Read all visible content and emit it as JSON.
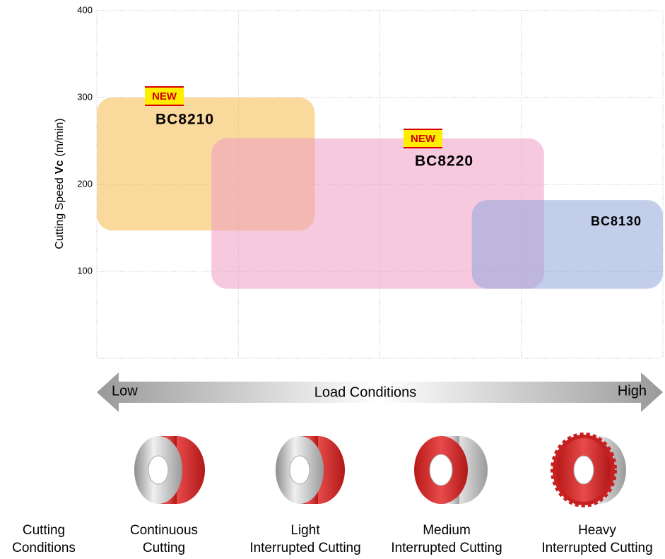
{
  "chart_data": {
    "type": "range-box",
    "y_label": [
      "Cutting Speed",
      "Vc",
      "(m/min)"
    ],
    "ylim": [
      0,
      400
    ],
    "yticks": [
      100,
      200,
      300,
      400
    ],
    "xlim": [
      0,
      4
    ],
    "xticks": [
      0,
      1,
      2,
      3,
      4
    ],
    "grid": true,
    "series": [
      {
        "name": "BC8210",
        "badge": "NEW",
        "color": "#f6b94b",
        "x": [
          0,
          1.54
        ],
        "y": [
          147,
          300
        ]
      },
      {
        "name": "BC8220",
        "badge": "NEW",
        "color": "#ef9cc4",
        "x": [
          0.81,
          3.16
        ],
        "y": [
          80,
          253
        ]
      },
      {
        "name": "BC8130",
        "badge": null,
        "color": "#8fa5d8",
        "x": [
          2.65,
          4
        ],
        "y": [
          80,
          182
        ]
      }
    ],
    "load_axis": {
      "low": "Low",
      "label": "Load Conditions",
      "high": "High"
    },
    "conditions_label": [
      "Cutting",
      "Conditions"
    ],
    "categories": [
      [
        "Continuous",
        "Cutting"
      ],
      [
        "Light",
        "Interrupted Cutting"
      ],
      [
        "Medium",
        "Interrupted Cutting"
      ],
      [
        "Heavy",
        "Interrupted Cutting"
      ]
    ]
  }
}
